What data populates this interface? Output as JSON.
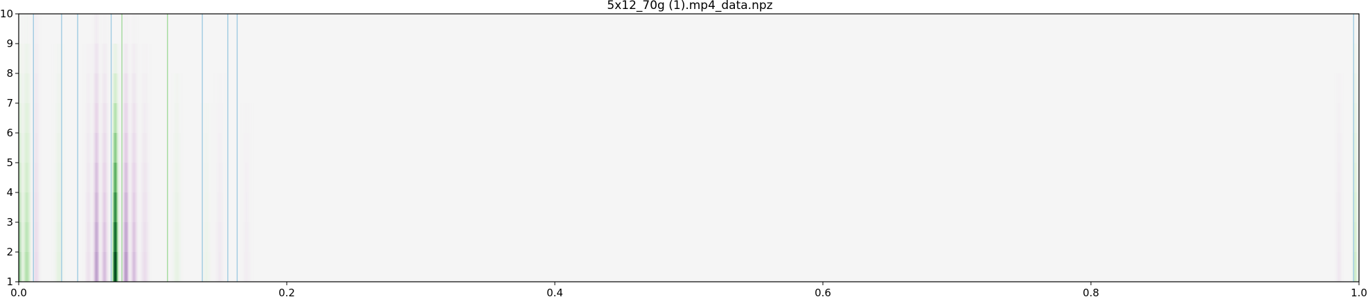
{
  "chart_data": {
    "type": "heatmap",
    "title": "5x12_70g (1).mp4_data.npz",
    "xlabel": "",
    "ylabel": "",
    "xlim": [
      0.0,
      1.0
    ],
    "ylim": [
      1,
      10
    ],
    "x_ticks": [
      "0.0",
      "0.2",
      "0.4",
      "0.6",
      "0.8",
      "1.0"
    ],
    "y_ticks": [
      "1",
      "2",
      "3",
      "4",
      "5",
      "6",
      "7",
      "8",
      "9",
      "10"
    ],
    "colormap": "PRGn",
    "background_color": "#f5f5f5",
    "rows": [
      1,
      2,
      3,
      4,
      5,
      6,
      7,
      8,
      9
    ],
    "bands": [
      {
        "center": 0.001,
        "width": 0.003,
        "sign": 1,
        "peak": 0.55,
        "row_decay": 0.12
      },
      {
        "center": 0.006,
        "width": 0.005,
        "sign": 1,
        "peak": 0.35,
        "row_decay": 0.12
      },
      {
        "center": 0.013,
        "width": 0.004,
        "sign": -1,
        "peak": 0.15,
        "row_decay": 0.1
      },
      {
        "center": 0.03,
        "width": 0.005,
        "sign": 1,
        "peak": 0.12,
        "row_decay": 0.12
      },
      {
        "center": 0.052,
        "width": 0.004,
        "sign": -1,
        "peak": 0.12,
        "row_decay": 0.12
      },
      {
        "center": 0.058,
        "width": 0.004,
        "sign": -1,
        "peak": 0.42,
        "row_decay": 0.11
      },
      {
        "center": 0.064,
        "width": 0.004,
        "sign": -1,
        "peak": 0.3,
        "row_decay": 0.12
      },
      {
        "center": 0.072,
        "width": 0.0035,
        "sign": 1,
        "peak": 1.0,
        "row_decay": 0.13
      },
      {
        "center": 0.08,
        "width": 0.004,
        "sign": -1,
        "peak": 0.45,
        "row_decay": 0.12
      },
      {
        "center": 0.086,
        "width": 0.004,
        "sign": -1,
        "peak": 0.3,
        "row_decay": 0.12
      },
      {
        "center": 0.094,
        "width": 0.005,
        "sign": -1,
        "peak": 0.15,
        "row_decay": 0.13
      },
      {
        "center": 0.118,
        "width": 0.005,
        "sign": 1,
        "peak": 0.1,
        "row_decay": 0.13
      },
      {
        "center": 0.14,
        "width": 0.005,
        "sign": 1,
        "peak": 0.06,
        "row_decay": 0.14
      },
      {
        "center": 0.15,
        "width": 0.005,
        "sign": -1,
        "peak": 0.07,
        "row_decay": 0.14
      },
      {
        "center": 0.17,
        "width": 0.005,
        "sign": -1,
        "peak": 0.05,
        "row_decay": 0.14
      },
      {
        "center": 0.985,
        "width": 0.004,
        "sign": -1,
        "peak": 0.08,
        "row_decay": 0.13
      },
      {
        "center": 0.997,
        "width": 0.003,
        "sign": 1,
        "peak": 0.25,
        "row_decay": 0.12
      }
    ],
    "vlines": [
      {
        "x": 0.011,
        "color": "#9ecae1"
      },
      {
        "x": 0.032,
        "color": "#9ecae1"
      },
      {
        "x": 0.044,
        "color": "#9ecae1"
      },
      {
        "x": 0.069,
        "color": "#9ecae1"
      },
      {
        "x": 0.077,
        "color": "#a1d99b"
      },
      {
        "x": 0.111,
        "color": "#a1d99b"
      },
      {
        "x": 0.137,
        "color": "#9ecae1"
      },
      {
        "x": 0.156,
        "color": "#9ecae1"
      },
      {
        "x": 0.163,
        "color": "#9ecae1"
      },
      {
        "x": 0.996,
        "color": "#9ecae1"
      }
    ]
  }
}
